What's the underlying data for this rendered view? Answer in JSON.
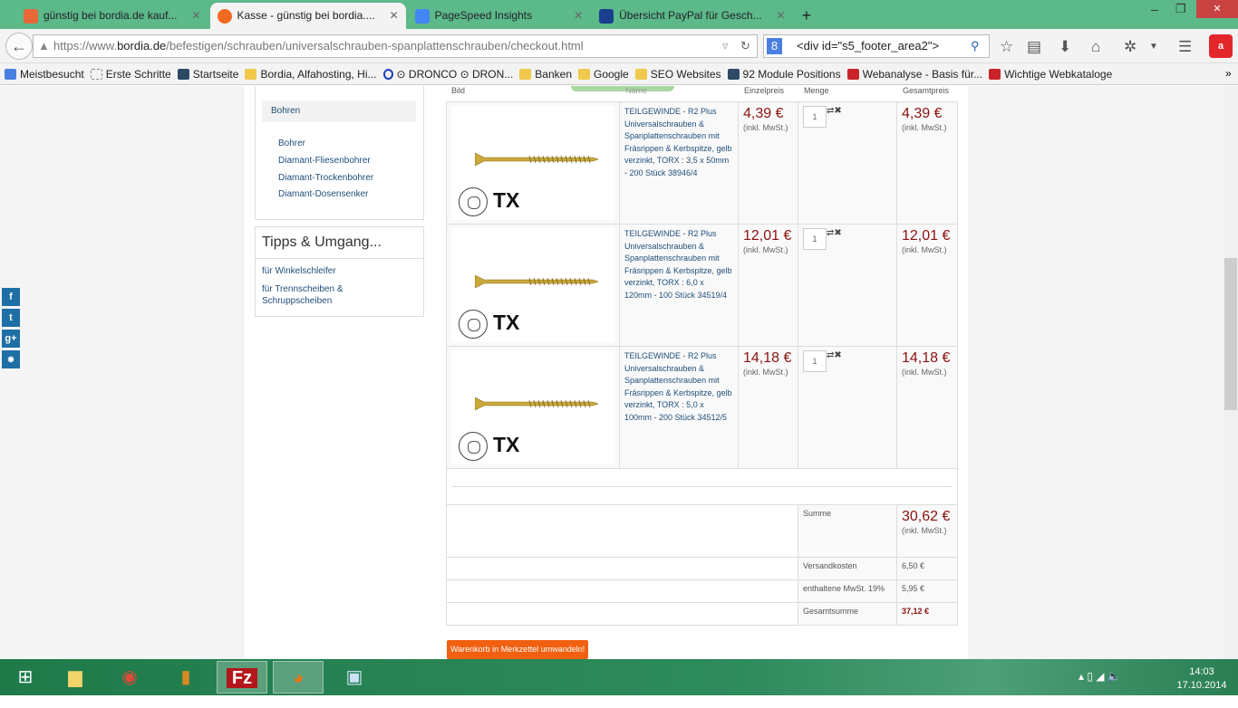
{
  "browser": {
    "tabs": [
      {
        "label": "günstig bei bordia.de kauf...",
        "icon": "joomla-icon",
        "color": "#e8683a"
      },
      {
        "label": "Kasse - günstig bei bordia....",
        "icon": "bordia-icon",
        "color": "#f26a21",
        "active": true
      },
      {
        "label": "PageSpeed Insights",
        "icon": "pagespeed-icon",
        "color": "#4285f4"
      },
      {
        "label": "Übersicht PayPal für Gesch...",
        "icon": "paypal-icon",
        "color": "#1a3f8f"
      }
    ],
    "url_prefix": "https://www.",
    "url_domain": "bordia.de",
    "url_path": "/befestigen/schrauben/universalschrauben-spanplattenschrauben/checkout.html",
    "search_value": "<div id=\"s5_footer_area2\">",
    "bookmarks": [
      "Meistbesucht",
      "Erste Schritte",
      "Startseite",
      "Bordia, Alfahosting, Hi...",
      "⊙ DRONCO ⊙ DRON...",
      "Banken",
      "Google",
      "SEO Websites",
      "92 Module Positions",
      "Webanalyse - Basis für...",
      "Wichtige Webkataloge"
    ]
  },
  "sidebar": {
    "active": "Bohren",
    "links": [
      "Bohrer",
      "Diamant-Fliesenbohrer",
      "Diamant-Trockenbohrer",
      "Diamant-Dosensenker"
    ],
    "tips_title": "Tipps & Umgang...",
    "tips_links": [
      "für Winkelschleifer",
      "für Trennscheiben & Schruppscheiben"
    ]
  },
  "cart": {
    "headers": {
      "image": "Bild",
      "name": "Name",
      "unit": "Einzelpreis",
      "qty": "Menge",
      "total": "Gesamtpreis"
    },
    "items": [
      {
        "name": "TEILGEWINDE - R2 Plus Universalschrauben & Spanplattenschrauben mit Fräsrippen & Kerbspitze, gelb verzinkt, TORX : 3,5 x 50mm - 200 Stück 38946/4",
        "unit": "4,39 €",
        "qty": "1",
        "total": "4,39 €"
      },
      {
        "name": "TEILGEWINDE - R2 Plus Universalschrauben & Spanplattenschrauben mit Fräsrippen & Kerbspitze, gelb verzinkt, TORX : 6,0 x 120mm - 100 Stück 34519/4",
        "unit": "12,01 €",
        "qty": "1",
        "total": "12,01 €"
      },
      {
        "name": "TEILGEWINDE - R2 Plus Universalschrauben & Spanplattenschrauben mit Fräsrippen & Kerbspitze, gelb verzinkt, TORX : 5,0 x 100mm - 200 Stück 34512/5",
        "unit": "14,18 €",
        "qty": "1",
        "total": "14,18 €"
      }
    ],
    "tax_note": "(inkl. MwSt.)",
    "image_label": "TX",
    "summary": {
      "sum_label": "Summe",
      "sum": "30,62 €",
      "shipping_label": "Versandkosten",
      "shipping": "6,50 €",
      "vat_label": "enthaltene MwSt. 19%",
      "vat": "5,95 €",
      "total_label": "Gesamtsumme",
      "total": "37,12 €"
    },
    "convert_button": "Warenkorb in Merkzettel umwandeln!"
  },
  "social": [
    "f",
    "t",
    "g+",
    "rss"
  ],
  "taskbar": {
    "time": "14:03",
    "date": "17.10.2014"
  },
  "colors": {
    "price": "#8b1111",
    "accent": "#f06010",
    "link": "#1f4e79"
  }
}
